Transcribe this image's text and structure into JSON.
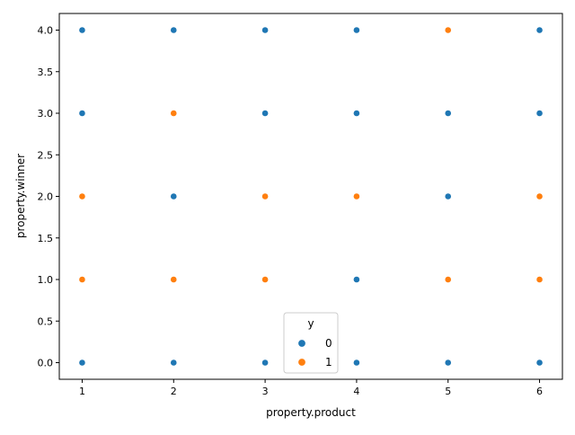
{
  "chart_data": {
    "type": "scatter",
    "title": "",
    "xlabel": "property.product",
    "ylabel": "property.winner",
    "xlim": [
      0.75,
      6.25
    ],
    "ylim": [
      -0.2,
      4.2
    ],
    "x_ticks": [
      1,
      2,
      3,
      4,
      5,
      6
    ],
    "x_tick_labels": [
      "1",
      "2",
      "3",
      "4",
      "5",
      "6"
    ],
    "y_ticks": [
      0,
      0.5,
      1,
      1.5,
      2,
      2.5,
      3,
      3.5,
      4
    ],
    "y_tick_labels": [
      "0.0",
      "0.5",
      "1.0",
      "1.5",
      "2.0",
      "2.5",
      "3.0",
      "3.5",
      "4.0"
    ],
    "grid": false,
    "legend": {
      "title": "y",
      "placement": "bottom-center"
    },
    "series": [
      {
        "name": "0",
        "color": "#1f77b4",
        "points": [
          [
            1,
            0
          ],
          [
            1,
            3
          ],
          [
            1,
            4
          ],
          [
            2,
            0
          ],
          [
            2,
            2
          ],
          [
            2,
            4
          ],
          [
            3,
            0
          ],
          [
            3,
            3
          ],
          [
            3,
            4
          ],
          [
            4,
            0
          ],
          [
            4,
            1
          ],
          [
            4,
            3
          ],
          [
            4,
            4
          ],
          [
            5,
            0
          ],
          [
            5,
            2
          ],
          [
            5,
            3
          ],
          [
            6,
            0
          ],
          [
            6,
            3
          ],
          [
            6,
            4
          ]
        ]
      },
      {
        "name": "1",
        "color": "#ff7f0e",
        "points": [
          [
            1,
            1
          ],
          [
            1,
            2
          ],
          [
            2,
            1
          ],
          [
            2,
            3
          ],
          [
            3,
            1
          ],
          [
            3,
            2
          ],
          [
            4,
            2
          ],
          [
            5,
            1
          ],
          [
            5,
            4
          ],
          [
            6,
            1
          ],
          [
            6,
            2
          ]
        ]
      }
    ]
  }
}
